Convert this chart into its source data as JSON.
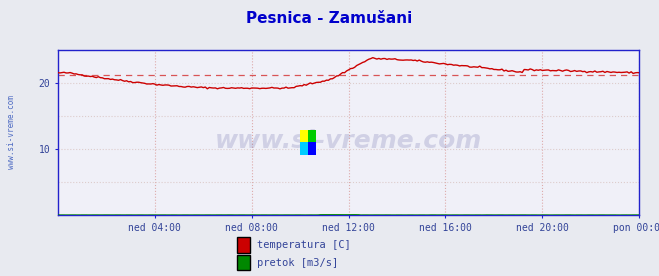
{
  "title": "Pesnica - Zamušani",
  "title_color": "#0000cc",
  "bg_color": "#e8eaf0",
  "plot_bg_color": "#f0f0f8",
  "axis_color": "#2222cc",
  "x_labels": [
    "ned 04:00",
    "ned 08:00",
    "ned 12:00",
    "ned 16:00",
    "ned 20:00",
    "pon 00:00"
  ],
  "x_ticks": [
    48,
    96,
    144,
    192,
    240,
    288
  ],
  "x_total": 288,
  "ylim": [
    0,
    25
  ],
  "y_ticks": [
    10,
    20
  ],
  "temp_avg": 21.2,
  "pretok_avg": 0.03,
  "watermark": "www.si-vreme.com",
  "watermark_color": "#000066",
  "watermark_alpha": 0.13,
  "temp_color": "#cc0000",
  "pretok_color": "#008800",
  "grid_v_color": "#ddaaaa",
  "grid_h_color": "#ddcccc",
  "legend": [
    {
      "label": "temperatura [C]",
      "color": "#cc0000"
    },
    {
      "label": "pretok [m3/s]",
      "color": "#008800"
    }
  ]
}
